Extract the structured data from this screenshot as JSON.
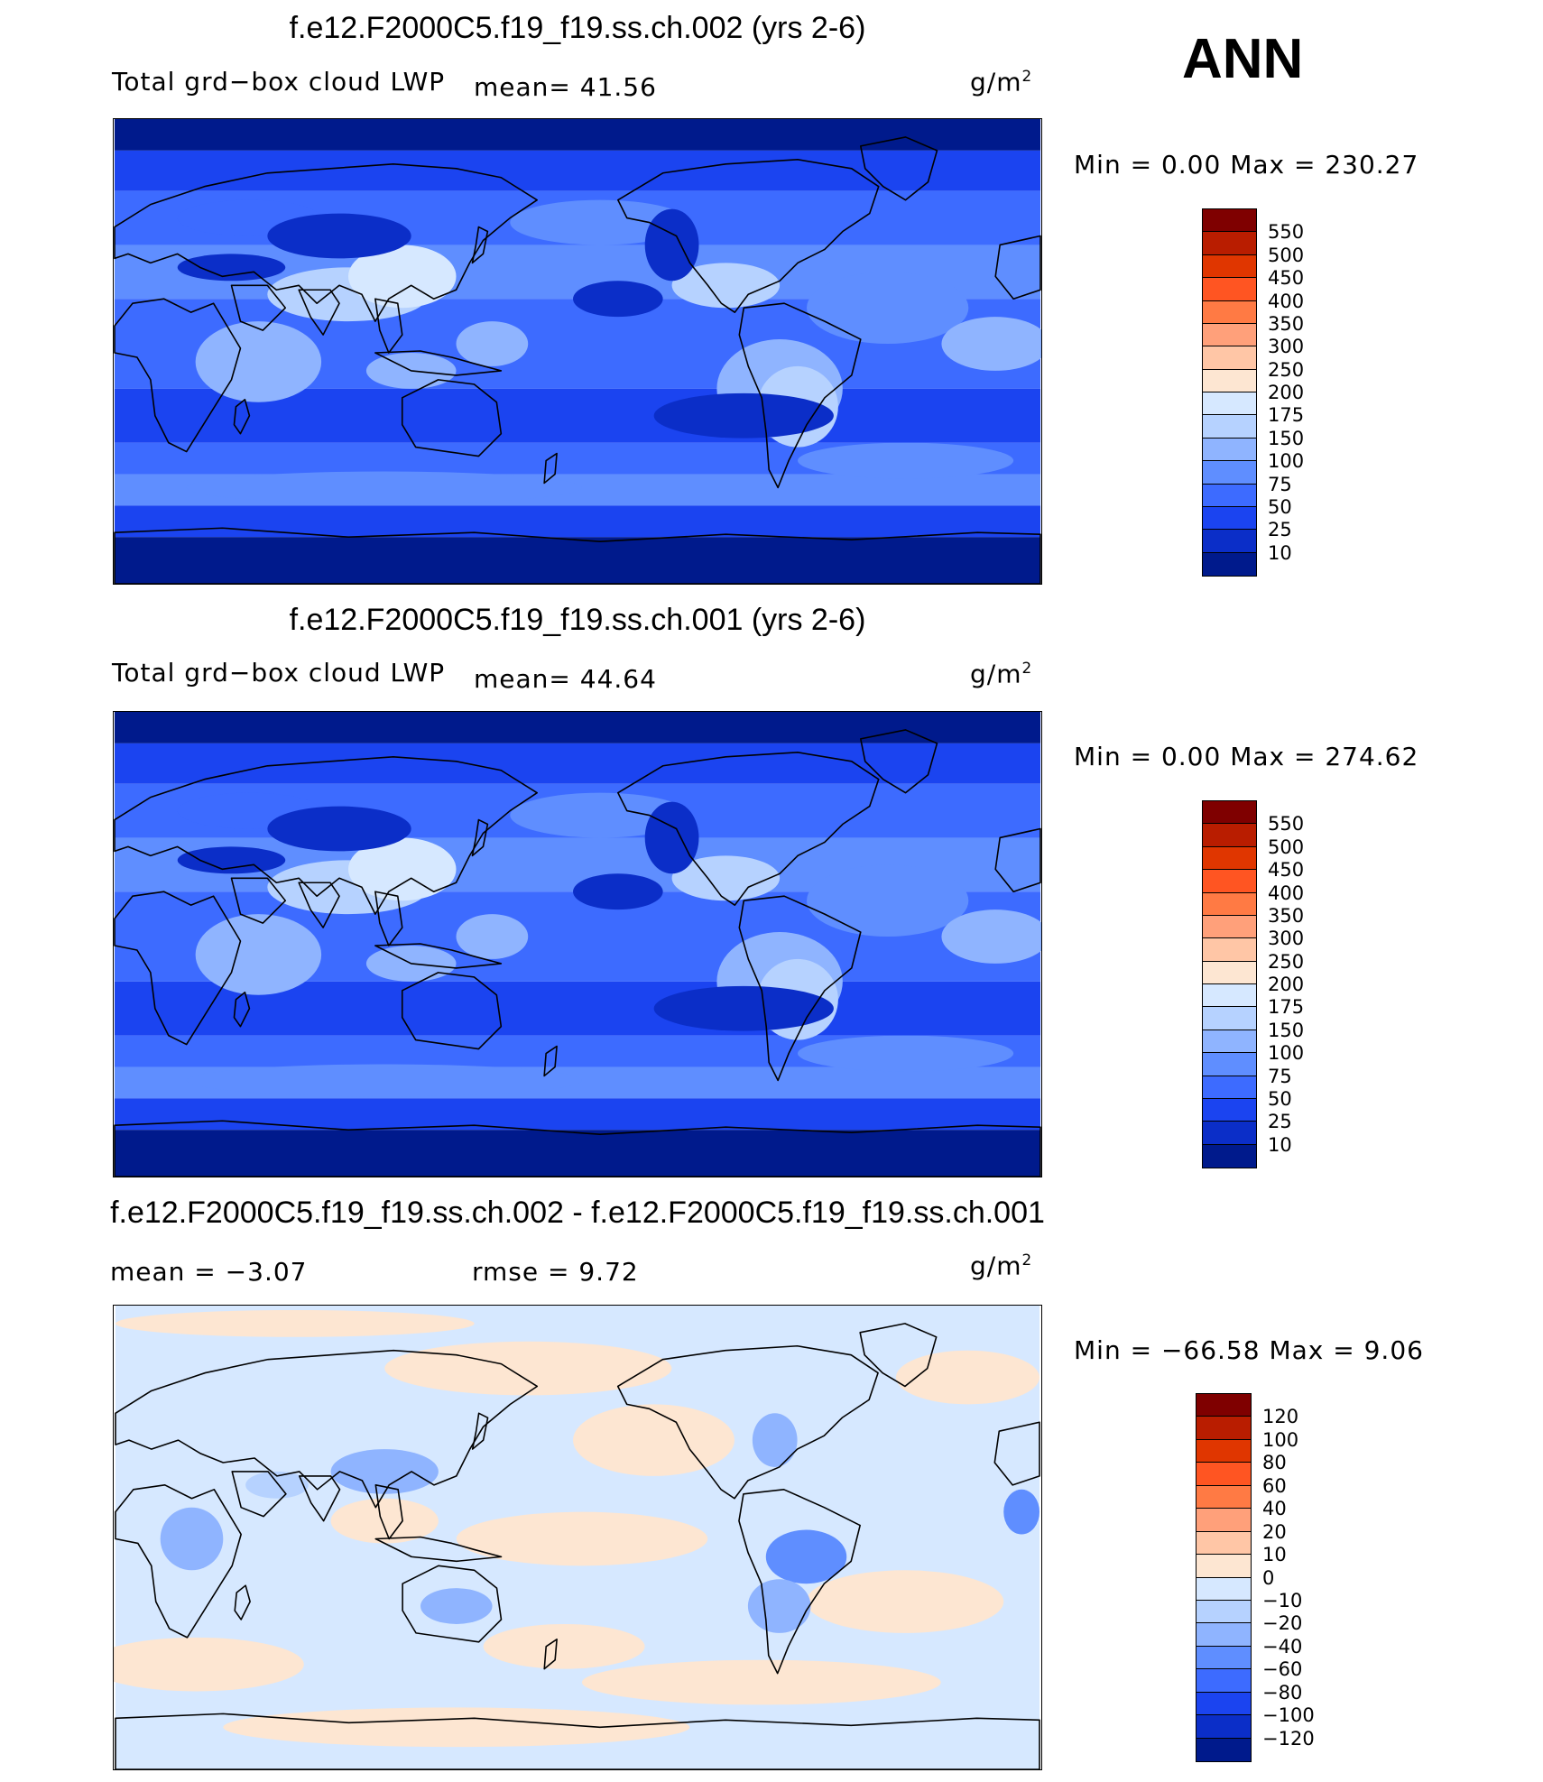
{
  "season": "ANN",
  "panels": [
    {
      "title": "f.e12.F2000C5.f19_f19.ss.ch.002 (yrs 2-6)",
      "variable": "Total grd−box cloud LWP",
      "stat1": "mean=   41.56",
      "stat2": "",
      "units": "g/m",
      "units_sup": "2",
      "minmax": "Min  =     0.00  Max  =  230.27",
      "scheme": "abs",
      "levels": [
        "550",
        "500",
        "450",
        "400",
        "350",
        "300",
        "250",
        "200",
        "175",
        "150",
        "100",
        "75",
        "50",
        "25",
        "10"
      ],
      "colors": [
        "#7f0000",
        "#b91d00",
        "#e03600",
        "#ff5522",
        "#ff7a44",
        "#ffa07a",
        "#ffc6a6",
        "#fde6d2",
        "#d6e8ff",
        "#b6d2ff",
        "#8fb4ff",
        "#5f8eff",
        "#3d6bff",
        "#1b44f0",
        "#0b2ec8",
        "#001a8c"
      ],
      "mean_value": 41.56
    },
    {
      "title": "f.e12.F2000C5.f19_f19.ss.ch.001 (yrs 2-6)",
      "variable": "Total grd−box cloud LWP",
      "stat1": "mean=   44.64",
      "stat2": "",
      "units": "g/m",
      "units_sup": "2",
      "minmax": "Min  =     0.00  Max  =  274.62",
      "scheme": "abs",
      "levels": [
        "550",
        "500",
        "450",
        "400",
        "350",
        "300",
        "250",
        "200",
        "175",
        "150",
        "100",
        "75",
        "50",
        "25",
        "10"
      ],
      "colors": [
        "#7f0000",
        "#b91d00",
        "#e03600",
        "#ff5522",
        "#ff7a44",
        "#ffa07a",
        "#ffc6a6",
        "#fde6d2",
        "#d6e8ff",
        "#b6d2ff",
        "#8fb4ff",
        "#5f8eff",
        "#3d6bff",
        "#1b44f0",
        "#0b2ec8",
        "#001a8c"
      ],
      "mean_value": 44.64
    },
    {
      "title": "f.e12.F2000C5.f19_f19.ss.ch.002 - f.e12.F2000C5.f19_f19.ss.ch.001",
      "variable": "",
      "stat1": "mean  =   −3.07",
      "stat2": "rmse  =     9.72",
      "units": "g/m",
      "units_sup": "2",
      "minmax": "Min  =  −66.58  Max  =      9.06",
      "scheme": "diff",
      "levels": [
        "120",
        "100",
        "80",
        "60",
        "40",
        "20",
        "10",
        "0",
        "−10",
        "−20",
        "−40",
        "−60",
        "−80",
        "−100",
        "−120"
      ],
      "colors": [
        "#7f0000",
        "#b91d00",
        "#e03600",
        "#ff5522",
        "#ff7a44",
        "#ffa07a",
        "#ffc6a6",
        "#fde6d2",
        "#d6e8ff",
        "#b6d2ff",
        "#8fb4ff",
        "#5f8eff",
        "#3d6bff",
        "#1b44f0",
        "#0b2ec8",
        "#001a8c"
      ],
      "mean_value": -3.07
    }
  ]
}
